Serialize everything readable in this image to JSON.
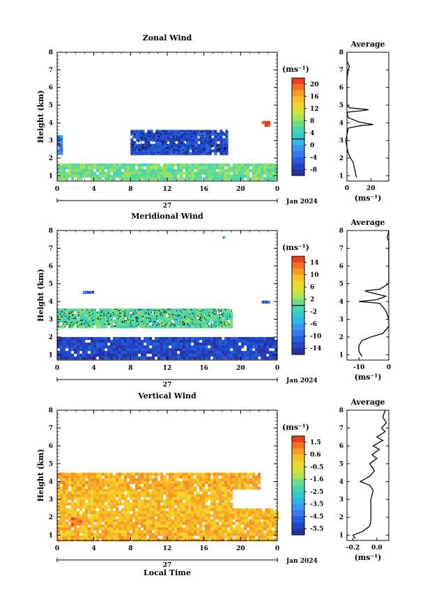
{
  "chart_data": [
    {
      "type": "heatmap",
      "title": "Zonal Wind",
      "ylabel": "Height (km)",
      "xlabel": "",
      "xlim": [
        0,
        24
      ],
      "ylim": [
        0.7,
        8
      ],
      "x_ticks": [
        "0",
        "4",
        "8",
        "12",
        "16",
        "20",
        "0"
      ],
      "y_ticks": [
        "1",
        "2",
        "3",
        "4",
        "5",
        "6",
        "7",
        "8"
      ],
      "date_label": "27",
      "month_label": "Jan 2024",
      "colorbar": {
        "unit": "(ms⁻¹)",
        "ticks": [
          "20",
          "16",
          "12",
          "8",
          "4",
          "0",
          "-4",
          "-8"
        ],
        "range": [
          -10,
          22
        ]
      },
      "regions": [
        {
          "x": [
            0,
            24
          ],
          "y": [
            0.9,
            1.7
          ],
          "value": 7
        },
        {
          "x": [
            0,
            0.4
          ],
          "y": [
            2.3,
            3.3
          ],
          "value": -2
        },
        {
          "x": [
            8,
            18.5
          ],
          "y": [
            2.3,
            3.6
          ],
          "value": -6
        },
        {
          "x": [
            22,
            23
          ],
          "y": [
            3.9,
            4.1
          ],
          "value": 21
        }
      ],
      "average": {
        "title": "Average",
        "unit": "(ms⁻¹)",
        "x_ticks": [
          "0",
          "20"
        ],
        "xlim": [
          0,
          35
        ],
        "height": [
          0.9,
          1.2,
          1.5,
          1.8,
          2.0,
          2.3,
          2.6,
          3.0,
          3.3,
          3.7,
          3.85,
          3.9,
          4.05,
          4.3,
          4.6,
          4.7,
          4.75,
          4.85,
          5.0,
          5.5,
          6.0,
          6.5,
          7.0,
          7.2,
          7.5,
          8.0
        ],
        "value": [
          8,
          7,
          6,
          5,
          3,
          1,
          0,
          -1,
          0,
          1,
          12,
          22,
          10,
          1,
          0,
          14,
          18,
          2,
          0,
          0,
          0,
          0,
          1,
          2,
          0,
          0
        ]
      }
    },
    {
      "type": "heatmap",
      "title": "Meridional Wind",
      "ylabel": "Height (km)",
      "xlabel": "",
      "xlim": [
        0,
        24
      ],
      "ylim": [
        0.7,
        8
      ],
      "x_ticks": [
        "0",
        "4",
        "8",
        "12",
        "16",
        "20",
        "0"
      ],
      "y_ticks": [
        "1",
        "2",
        "3",
        "4",
        "5",
        "6",
        "7",
        "8"
      ],
      "date_label": "27",
      "month_label": "Jan 2024",
      "colorbar": {
        "unit": "(ms⁻¹)",
        "ticks": [
          "14",
          "10",
          "6",
          "2",
          "-2",
          "-6",
          "-10",
          "-14"
        ],
        "range": [
          -16,
          16
        ]
      },
      "regions": [
        {
          "x": [
            0,
            24
          ],
          "y": [
            0.8,
            2.0
          ],
          "value": -13
        },
        {
          "x": [
            0,
            19
          ],
          "y": [
            2.6,
            3.6
          ],
          "value": 0
        },
        {
          "x": [
            2.8,
            4
          ],
          "y": [
            4.45,
            4.6
          ],
          "value": -9
        },
        {
          "x": [
            22.3,
            23
          ],
          "y": [
            3.95,
            4.05
          ],
          "value": -10
        },
        {
          "x": [
            18,
            18.2
          ],
          "y": [
            7.6,
            7.7
          ],
          "value": 0
        }
      ],
      "average": {
        "title": "Average",
        "unit": "(ms⁻¹)",
        "x_ticks": [
          "-10",
          "0"
        ],
        "xlim": [
          -14,
          0
        ],
        "height": [
          0.9,
          1.2,
          1.5,
          1.8,
          2.0,
          2.2,
          2.6,
          3.0,
          3.5,
          3.9,
          4.0,
          4.1,
          4.3,
          4.5,
          4.6,
          4.7,
          4.9,
          5.0,
          5.5,
          6.0,
          7.0,
          7.4,
          7.6,
          8.0
        ],
        "value": [
          -9,
          -10,
          -10,
          -9,
          -6,
          -2,
          0,
          0,
          -1,
          -3,
          -10,
          -4,
          -1,
          -6,
          -8,
          -3,
          -1,
          0,
          0,
          0,
          0,
          0,
          -0.5,
          0
        ]
      }
    },
    {
      "type": "heatmap",
      "title": "Vertical Wind",
      "ylabel": "Height (km)",
      "xlabel": "Local Time",
      "xlim": [
        0,
        24
      ],
      "ylim": [
        0.7,
        8
      ],
      "x_ticks": [
        "0",
        "4",
        "8",
        "12",
        "16",
        "20",
        "0"
      ],
      "y_ticks": [
        "1",
        "2",
        "3",
        "4",
        "5",
        "6",
        "7",
        "8"
      ],
      "date_label": "27",
      "month_label": "Jan 2024",
      "colorbar": {
        "unit": "(ms⁻¹)",
        "ticks": [
          "1.5",
          "0.6",
          "-0.5",
          "-1.6",
          "-2.5",
          "-3.5",
          "-4.5",
          "-5.5"
        ],
        "range": [
          -6,
          2
        ]
      },
      "regions": [
        {
          "x": [
            0,
            24
          ],
          "y": [
            0.7,
            1.9
          ],
          "value": 0.4
        },
        {
          "x": [
            0,
            19
          ],
          "y": [
            2.0,
            3.6
          ],
          "value": 0.3
        },
        {
          "x": [
            19,
            24
          ],
          "y": [
            2.0,
            2.5
          ],
          "value": 0.3
        },
        {
          "x": [
            0,
            22
          ],
          "y": [
            3.6,
            4.5
          ],
          "value": 0.5
        },
        {
          "x": [
            1.5,
            2.5
          ],
          "y": [
            1.6,
            2.0
          ],
          "value": 1.3
        }
      ],
      "average": {
        "title": "Average",
        "unit": "(ms⁻¹)",
        "x_ticks": [
          "-0.2",
          "0.0"
        ],
        "xlim": [
          -0.25,
          0.1
        ],
        "height": [
          0.8,
          1.0,
          1.2,
          1.5,
          1.8,
          2.0,
          2.5,
          3.0,
          3.5,
          3.8,
          4.0,
          4.3,
          4.6,
          5.0,
          5.3,
          5.5,
          5.8,
          6.0,
          6.3,
          6.5,
          6.8,
          7.0,
          7.3,
          7.6,
          8.0
        ],
        "value": [
          -0.18,
          -0.2,
          -0.12,
          -0.06,
          -0.05,
          -0.05,
          -0.05,
          -0.05,
          -0.03,
          -0.06,
          -0.14,
          -0.06,
          -0.02,
          -0.06,
          0.0,
          -0.04,
          0.02,
          -0.03,
          0.05,
          0.0,
          0.07,
          0.04,
          0.08,
          0.05,
          0.07
        ]
      }
    }
  ]
}
